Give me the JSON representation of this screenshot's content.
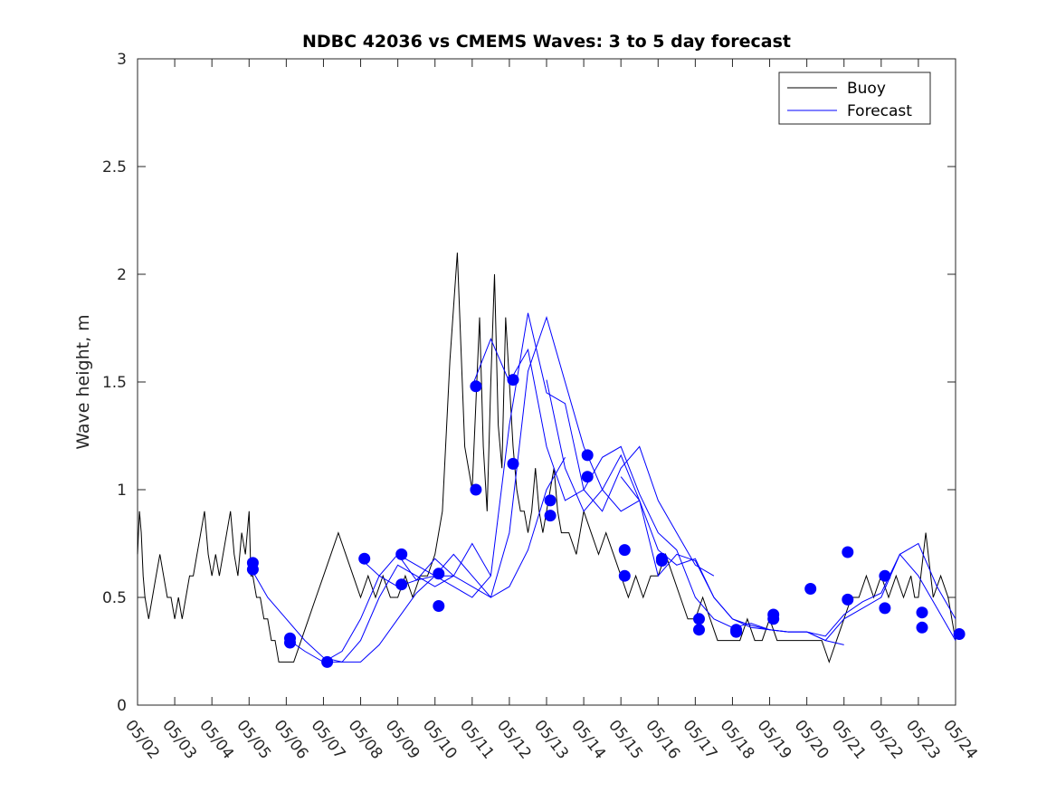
{
  "chart_data": {
    "type": "line",
    "title": "NDBC 42036 vs CMEMS Waves: 3 to 5 day forecast",
    "xlabel": "",
    "ylabel": "Wave height, m",
    "xlim": [
      0,
      22
    ],
    "ylim": [
      0,
      3
    ],
    "x_tick_labels": [
      "05/02",
      "05/03",
      "05/04",
      "05/05",
      "05/06",
      "05/07",
      "05/08",
      "05/09",
      "05/10",
      "05/11",
      "05/12",
      "05/13",
      "05/14",
      "05/15",
      "05/16",
      "05/17",
      "05/18",
      "05/19",
      "05/20",
      "05/21",
      "05/22",
      "05/23",
      "05/24"
    ],
    "y_ticks": [
      0,
      0.5,
      1,
      1.5,
      2,
      2.5,
      3
    ],
    "y_tick_labels": [
      "0",
      "0.5",
      "1",
      "1.5",
      "2",
      "2.5",
      "3"
    ],
    "grid": false,
    "legend": {
      "position": "top-right",
      "entries": [
        "Buoy",
        "Forecast"
      ]
    },
    "colors": {
      "buoy": "#000000",
      "forecast": "#0000ff",
      "markers": "#0000ff"
    },
    "series": [
      {
        "name": "Buoy",
        "x": [
          0,
          0.05,
          0.1,
          0.15,
          0.2,
          0.3,
          0.4,
          0.5,
          0.6,
          0.7,
          0.8,
          0.9,
          1.0,
          1.1,
          1.2,
          1.3,
          1.4,
          1.5,
          1.6,
          1.7,
          1.8,
          1.9,
          2.0,
          2.1,
          2.2,
          2.3,
          2.4,
          2.5,
          2.6,
          2.7,
          2.8,
          2.9,
          3.0,
          3.05,
          3.1,
          3.2,
          3.3,
          3.4,
          3.5,
          3.6,
          3.7,
          3.8,
          3.9,
          4.0,
          4.2,
          4.4,
          4.6,
          4.8,
          5.0,
          5.2,
          5.4,
          5.6,
          5.8,
          6.0,
          6.2,
          6.4,
          6.6,
          6.8,
          7.0,
          7.2,
          7.4,
          7.6,
          7.8,
          8.0,
          8.2,
          8.4,
          8.6,
          8.8,
          9.0,
          9.2,
          9.3,
          9.4,
          9.5,
          9.6,
          9.7,
          9.8,
          9.9,
          10.0,
          10.1,
          10.2,
          10.3,
          10.4,
          10.5,
          10.6,
          10.7,
          10.8,
          10.9,
          11.0,
          11.1,
          11.2,
          11.3,
          11.4,
          11.5,
          11.6,
          11.8,
          12.0,
          12.2,
          12.4,
          12.6,
          12.8,
          13.0,
          13.2,
          13.4,
          13.6,
          13.8,
          14.0,
          14.2,
          14.4,
          14.6,
          14.8,
          15.0,
          15.2,
          15.4,
          15.6,
          15.8,
          16.0,
          16.2,
          16.4,
          16.6,
          16.8,
          17.0,
          17.2,
          17.4,
          17.6,
          17.8,
          18.0,
          18.2,
          18.4,
          18.6,
          18.8,
          19.0,
          19.2,
          19.4,
          19.6,
          19.8,
          20.0,
          20.2,
          20.4,
          20.6,
          20.8,
          20.9,
          21.0,
          21.2,
          21.4,
          21.6,
          21.8,
          22.0
        ],
        "values": [
          0.7,
          0.9,
          0.8,
          0.6,
          0.5,
          0.4,
          0.5,
          0.6,
          0.7,
          0.6,
          0.5,
          0.5,
          0.4,
          0.5,
          0.4,
          0.5,
          0.6,
          0.6,
          0.7,
          0.8,
          0.9,
          0.7,
          0.6,
          0.7,
          0.6,
          0.7,
          0.8,
          0.9,
          0.7,
          0.6,
          0.8,
          0.7,
          0.9,
          0.6,
          0.6,
          0.5,
          0.5,
          0.4,
          0.4,
          0.3,
          0.3,
          0.2,
          0.2,
          0.2,
          0.2,
          0.3,
          0.4,
          0.5,
          0.6,
          0.7,
          0.8,
          0.7,
          0.6,
          0.5,
          0.6,
          0.5,
          0.6,
          0.5,
          0.5,
          0.6,
          0.5,
          0.6,
          0.6,
          0.7,
          0.9,
          1.6,
          2.1,
          1.2,
          1.0,
          1.8,
          1.2,
          0.9,
          1.5,
          2.0,
          1.3,
          1.1,
          1.8,
          1.5,
          1.2,
          1.0,
          0.9,
          0.9,
          0.8,
          0.9,
          1.1,
          0.9,
          0.8,
          0.9,
          1.0,
          1.1,
          0.9,
          0.8,
          0.8,
          0.8,
          0.7,
          0.9,
          0.8,
          0.7,
          0.8,
          0.7,
          0.6,
          0.5,
          0.6,
          0.5,
          0.6,
          0.6,
          0.7,
          0.6,
          0.5,
          0.4,
          0.4,
          0.5,
          0.4,
          0.3,
          0.3,
          0.3,
          0.3,
          0.4,
          0.3,
          0.3,
          0.4,
          0.3,
          0.3,
          0.3,
          0.3,
          0.3,
          0.3,
          0.3,
          0.2,
          0.3,
          0.4,
          0.5,
          0.5,
          0.6,
          0.5,
          0.6,
          0.5,
          0.6,
          0.5,
          0.6,
          0.5,
          0.5,
          0.8,
          0.5,
          0.6,
          0.5,
          0.3
        ]
      },
      {
        "name": "Forecast",
        "runs": [
          {
            "x": [
              3.0,
              3.5,
              4.0,
              4.5,
              5.0,
              5.5,
              6.0,
              6.5,
              7.0,
              7.5,
              8.0,
              8.5
            ],
            "values": [
              0.65,
              0.5,
              0.4,
              0.3,
              0.22,
              0.2,
              0.2,
              0.28,
              0.4,
              0.52,
              0.6,
              0.6
            ]
          },
          {
            "x": [
              4.0,
              4.5,
              5.0,
              5.5,
              6.0,
              6.5,
              7.0,
              7.5,
              8.0,
              8.5,
              9.0,
              9.5
            ],
            "values": [
              0.31,
              0.25,
              0.2,
              0.2,
              0.3,
              0.5,
              0.65,
              0.6,
              0.55,
              0.6,
              0.75,
              0.6
            ]
          },
          {
            "x": [
              5.0,
              5.5,
              6.0,
              6.5,
              7.0,
              7.5,
              8.0,
              8.5,
              9.0,
              9.5,
              10.0,
              10.5,
              11.0,
              11.5
            ],
            "values": [
              0.2,
              0.25,
              0.4,
              0.6,
              0.7,
              0.58,
              0.6,
              0.7,
              0.6,
              0.5,
              0.55,
              0.72,
              1.0,
              1.15
            ]
          },
          {
            "x": [
              6.0,
              6.5,
              7.0,
              7.5,
              8.0,
              8.5,
              9.0,
              9.5,
              10.0,
              10.5,
              11.0,
              11.5,
              12.0,
              12.5,
              13.0,
              13.5
            ],
            "values": [
              0.68,
              0.6,
              0.55,
              0.58,
              0.68,
              0.6,
              0.55,
              0.5,
              0.8,
              1.55,
              1.8,
              1.5,
              1.2,
              1.0,
              0.9,
              0.95
            ]
          },
          {
            "x": [
              7.0,
              7.5,
              8.0,
              8.5,
              9.0,
              9.5,
              10.0,
              10.5,
              11.0,
              11.5,
              12.0,
              12.5,
              13.0,
              13.5,
              14.0,
              14.5,
              15.0,
              15.5
            ],
            "values": [
              0.7,
              0.65,
              0.6,
              0.55,
              0.5,
              0.6,
              1.3,
              1.82,
              1.45,
              1.4,
              1.0,
              0.9,
              1.1,
              1.2,
              0.95,
              0.8,
              0.65,
              0.6
            ]
          },
          {
            "x": [
              9.0,
              9.5,
              10.0,
              10.5,
              11.0,
              11.5,
              12.0,
              12.5,
              13.0,
              13.5,
              14.0,
              14.5,
              15.0,
              15.5,
              16.0,
              16.5,
              17.0,
              17.5,
              18.0,
              18.5,
              19.0
            ],
            "values": [
              1.48,
              1.7,
              1.5,
              1.65,
              1.2,
              0.95,
              1.0,
              1.15,
              1.2,
              0.98,
              0.8,
              0.72,
              0.5,
              0.4,
              0.36,
              0.38,
              0.35,
              0.34,
              0.34,
              0.3,
              0.28
            ]
          },
          {
            "x": [
              11.0,
              11.5,
              12.0,
              12.5,
              13.0,
              13.5,
              14.0,
              14.5,
              15.0,
              15.5,
              16.0,
              16.5,
              17.0,
              17.5,
              18.0,
              18.5,
              19.0,
              19.5,
              20.0,
              20.5,
              21.0,
              21.5,
              22.0
            ],
            "values": [
              1.51,
              1.1,
              0.9,
              1.0,
              1.16,
              0.95,
              0.72,
              0.65,
              0.68,
              0.5,
              0.4,
              0.36,
              0.35,
              0.34,
              0.34,
              0.32,
              0.42,
              0.48,
              0.52,
              0.7,
              0.75,
              0.55,
              0.4
            ]
          },
          {
            "x": [
              13.0,
              13.5,
              14.0,
              14.5,
              15.0,
              15.5,
              16.0,
              16.5,
              17.0,
              17.5,
              18.0,
              18.5,
              19.0,
              19.5,
              20.0,
              20.5,
              21.0,
              21.5,
              22.0
            ],
            "values": [
              1.06,
              0.95,
              0.6,
              0.7,
              0.67,
              0.5,
              0.4,
              0.37,
              0.35,
              0.34,
              0.34,
              0.3,
              0.4,
              0.45,
              0.5,
              0.7,
              0.6,
              0.45,
              0.3
            ]
          }
        ]
      }
    ],
    "markers": {
      "x": [
        3.1,
        3.1,
        4.1,
        4.1,
        5.1,
        6.1,
        7.1,
        7.1,
        8.1,
        8.1,
        9.1,
        9.1,
        10.1,
        10.1,
        11.1,
        11.1,
        12.1,
        12.1,
        13.1,
        13.1,
        14.1,
        14.1,
        15.1,
        15.1,
        16.1,
        16.1,
        17.1,
        17.1,
        18.1,
        19.1,
        19.1,
        20.1,
        20.1,
        21.1,
        21.1,
        22.1
      ],
      "values": [
        0.66,
        0.63,
        0.31,
        0.29,
        0.2,
        0.68,
        0.7,
        0.56,
        0.61,
        0.46,
        1.48,
        1.0,
        1.51,
        1.12,
        0.95,
        0.88,
        1.16,
        1.06,
        0.72,
        0.6,
        0.68,
        0.67,
        0.4,
        0.35,
        0.35,
        0.34,
        0.42,
        0.4,
        0.54,
        0.49,
        0.71,
        0.6,
        0.45,
        0.43,
        0.36,
        0.33
      ]
    }
  }
}
